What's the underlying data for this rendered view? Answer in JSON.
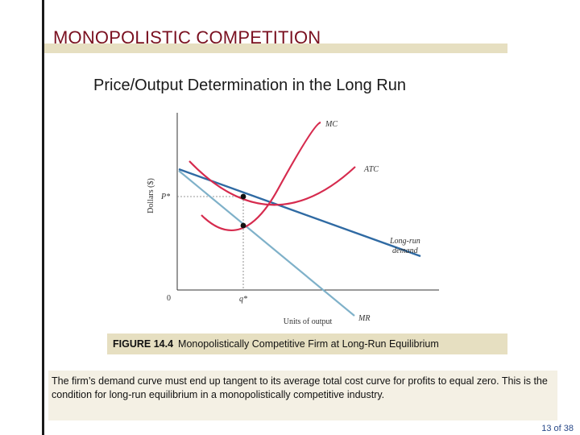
{
  "slide": {
    "title": "MONOPOLISTIC COMPETITION",
    "subtitle": "Price/Output Determination in the Long Run",
    "page": "13 of 38"
  },
  "diagram": {
    "y_axis_label": "Dollars ($)",
    "x_axis_label": "Units of output",
    "origin_label": "0",
    "price_label": "P*",
    "quantity_label": "q*",
    "curves": {
      "mc": "MC",
      "atc": "ATC",
      "demand_line1": "Long-run",
      "demand_line2": "demand",
      "mr": "MR"
    },
    "colors": {
      "cost_curves": "#d62b4e",
      "demand": "#2f6aa3",
      "mr": "#7fb1c9"
    }
  },
  "caption": {
    "figure_number": "FIGURE 14.4",
    "figure_title": "Monopolistically Competitive Firm at Long-Run Equilibrium"
  },
  "explanation": "The firm’s demand curve must end up tangent to its average total cost curve for profits to equal zero.  This is the condition for long-run equilibrium in a monopolistically competitive industry."
}
